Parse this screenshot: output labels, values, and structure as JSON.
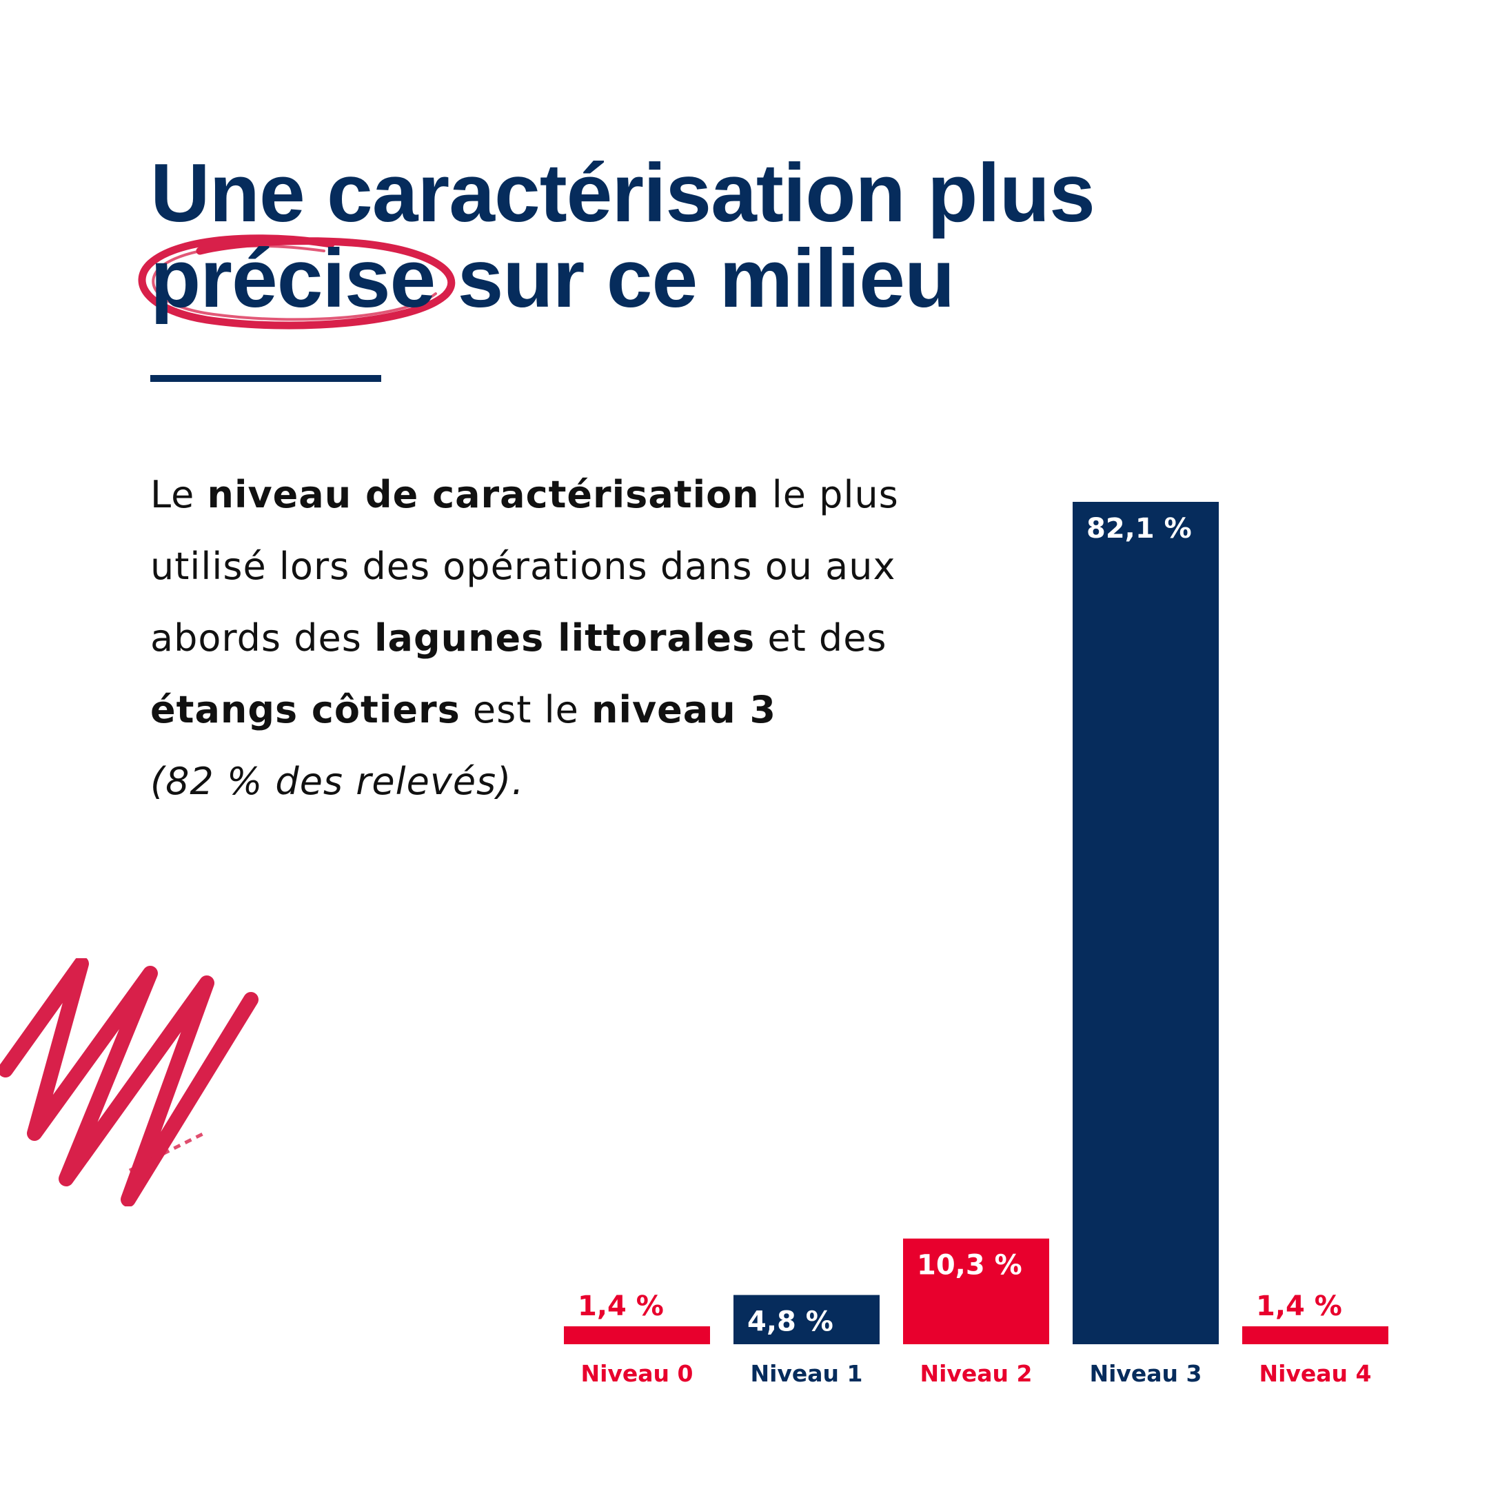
{
  "title": {
    "line1": "Une caractérisation plus",
    "highlight_word": "précise",
    "line2_rest": " sur ce milieu",
    "color": "#062c5c",
    "highlight_color": "#d8204a"
  },
  "body": {
    "t1": "Le ",
    "b1": "niveau de caractérisation",
    "t2": " le plus utilisé lors des opérations dans ou aux abords des ",
    "b2": "lagunes littorales",
    "t3": " et des ",
    "b3": "étangs côtiers",
    "t4": " est le ",
    "b4": "niveau 3",
    "note": "(82 % des relevés)."
  },
  "colors": {
    "navy": "#062c5c",
    "red": "#e8002d",
    "scribble": "#d8204a"
  },
  "chart_data": {
    "type": "bar",
    "categories": [
      "Niveau 0",
      "Niveau 1",
      "Niveau 2",
      "Niveau 3",
      "Niveau 4"
    ],
    "values": [
      1.4,
      4.8,
      10.3,
      82.1,
      1.4
    ],
    "value_labels": [
      "1,4 %",
      "4,8 %",
      "10,3 %",
      "82,1 %",
      "1,4 %"
    ],
    "bar_colors": [
      "#e8002d",
      "#062c5c",
      "#e8002d",
      "#062c5c",
      "#e8002d"
    ],
    "ylim": [
      0,
      82.1
    ],
    "grid": false,
    "title": "",
    "xlabel": "",
    "ylabel": ""
  }
}
